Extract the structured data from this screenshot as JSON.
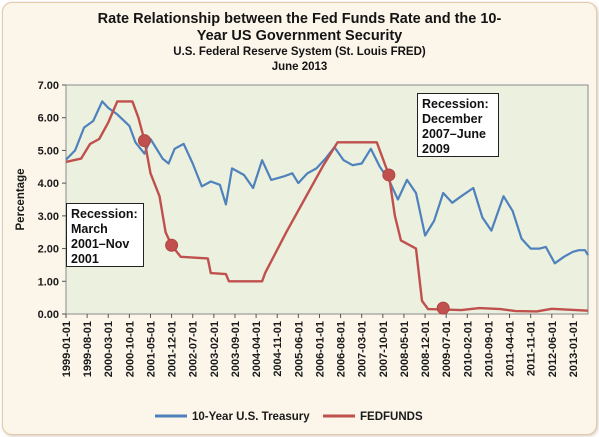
{
  "chart_data": {
    "type": "line",
    "title": "Rate Relationship between the Fed Funds Rate and the 10-Year US Government Security",
    "title_lines": [
      "Rate Relationship between the Fed Funds Rate and the 10-",
      "Year US Government Security"
    ],
    "subtitle": "U.S. Federal Reserve System (St. Louis FRED)",
    "date_line": "June 2013",
    "xlabel": "",
    "ylabel": "Percentage",
    "ylim": [
      0,
      7
    ],
    "yticks": [
      "0.00",
      "1.00",
      "2.00",
      "3.00",
      "4.00",
      "5.00",
      "6.00",
      "7.00"
    ],
    "xticks": [
      "1999-01-01",
      "1999-08-01",
      "2000-03-01",
      "2000-10-01",
      "2001-05-01",
      "2001-12-01",
      "2002-07-01",
      "2003-02-01",
      "2003-09-01",
      "2004-04-01",
      "2004-11-01",
      "2005-06-01",
      "2006-01-01",
      "2006-08-01",
      "2007-03-01",
      "2007-10-01",
      "2008-05-01",
      "2008-12-01",
      "2009-07-01",
      "2010-02-01",
      "2010-09-01",
      "2011-04-01",
      "2011-11-01",
      "2012-06-01",
      "2013-01-01"
    ],
    "xlim": [
      "1999-01-01",
      "2013-06-01"
    ],
    "grid": false,
    "legend_position": "bottom",
    "plot_background": "#ebf1de",
    "series": [
      {
        "name": "10-Year U.S. Treasury",
        "color": "#4f81bd",
        "points": [
          [
            "1999-01-01",
            4.72
          ],
          [
            "1999-04-01",
            5.0
          ],
          [
            "1999-07-01",
            5.7
          ],
          [
            "1999-10-01",
            5.9
          ],
          [
            "2000-01-01",
            6.5
          ],
          [
            "2000-03-01",
            6.3
          ],
          [
            "2000-06-01",
            6.1
          ],
          [
            "2000-10-01",
            5.75
          ],
          [
            "2000-12-01",
            5.25
          ],
          [
            "2001-03-01",
            4.9
          ],
          [
            "2001-05-01",
            5.35
          ],
          [
            "2001-09-01",
            4.75
          ],
          [
            "2001-11-01",
            4.6
          ],
          [
            "2002-01-01",
            5.05
          ],
          [
            "2002-04-01",
            5.2
          ],
          [
            "2002-07-01",
            4.6
          ],
          [
            "2002-10-01",
            3.9
          ],
          [
            "2003-01-01",
            4.05
          ],
          [
            "2003-04-01",
            3.95
          ],
          [
            "2003-06-01",
            3.35
          ],
          [
            "2003-08-01",
            4.45
          ],
          [
            "2003-12-01",
            4.25
          ],
          [
            "2004-03-01",
            3.85
          ],
          [
            "2004-06-01",
            4.7
          ],
          [
            "2004-09-01",
            4.1
          ],
          [
            "2005-01-01",
            4.2
          ],
          [
            "2005-04-01",
            4.3
          ],
          [
            "2005-06-01",
            4.0
          ],
          [
            "2005-09-01",
            4.3
          ],
          [
            "2005-12-01",
            4.45
          ],
          [
            "2006-03-01",
            4.75
          ],
          [
            "2006-06-01",
            5.1
          ],
          [
            "2006-09-01",
            4.7
          ],
          [
            "2006-12-01",
            4.55
          ],
          [
            "2007-03-01",
            4.6
          ],
          [
            "2007-06-01",
            5.05
          ],
          [
            "2007-09-01",
            4.5
          ],
          [
            "2007-12-01",
            4.1
          ],
          [
            "2008-03-01",
            3.5
          ],
          [
            "2008-06-01",
            4.1
          ],
          [
            "2008-09-01",
            3.7
          ],
          [
            "2008-12-01",
            2.4
          ],
          [
            "2009-03-01",
            2.85
          ],
          [
            "2009-06-01",
            3.7
          ],
          [
            "2009-09-01",
            3.4
          ],
          [
            "2009-12-01",
            3.6
          ],
          [
            "2010-04-01",
            3.85
          ],
          [
            "2010-07-01",
            2.95
          ],
          [
            "2010-10-01",
            2.55
          ],
          [
            "2011-02-01",
            3.6
          ],
          [
            "2011-05-01",
            3.15
          ],
          [
            "2011-08-01",
            2.3
          ],
          [
            "2011-11-01",
            2.0
          ],
          [
            "2012-02-01",
            2.0
          ],
          [
            "2012-04-01",
            2.05
          ],
          [
            "2012-07-01",
            1.55
          ],
          [
            "2012-10-01",
            1.75
          ],
          [
            "2013-01-01",
            1.9
          ],
          [
            "2013-03-01",
            1.95
          ],
          [
            "2013-05-01",
            1.95
          ],
          [
            "2013-06-01",
            1.8
          ]
        ]
      },
      {
        "name": "FEDFUNDS",
        "color": "#c0504d",
        "points": [
          [
            "1999-01-01",
            4.65
          ],
          [
            "1999-06-01",
            4.75
          ],
          [
            "1999-09-01",
            5.2
          ],
          [
            "1999-12-01",
            5.35
          ],
          [
            "2000-03-01",
            5.85
          ],
          [
            "2000-06-01",
            6.5
          ],
          [
            "2000-11-01",
            6.5
          ],
          [
            "2001-01-01",
            6.0
          ],
          [
            "2001-03-01",
            5.3
          ],
          [
            "2001-05-01",
            4.3
          ],
          [
            "2001-08-01",
            3.6
          ],
          [
            "2001-10-01",
            2.5
          ],
          [
            "2001-12-01",
            2.1
          ],
          [
            "2002-03-01",
            1.75
          ],
          [
            "2002-12-01",
            1.7
          ],
          [
            "2003-01-01",
            1.25
          ],
          [
            "2003-06-01",
            1.22
          ],
          [
            "2003-07-01",
            1.0
          ],
          [
            "2004-06-01",
            1.0
          ],
          [
            "2004-07-01",
            1.25
          ],
          [
            "2005-02-01",
            2.5
          ],
          [
            "2005-08-01",
            3.5
          ],
          [
            "2006-02-01",
            4.5
          ],
          [
            "2006-07-01",
            5.25
          ],
          [
            "2007-08-01",
            5.25
          ],
          [
            "2007-10-01",
            4.75
          ],
          [
            "2007-12-01",
            4.25
          ],
          [
            "2008-02-01",
            3.0
          ],
          [
            "2008-04-01",
            2.25
          ],
          [
            "2008-09-01",
            2.0
          ],
          [
            "2008-11-01",
            0.4
          ],
          [
            "2009-01-01",
            0.15
          ],
          [
            "2009-12-01",
            0.12
          ],
          [
            "2010-06-01",
            0.18
          ],
          [
            "2011-01-01",
            0.15
          ],
          [
            "2011-06-01",
            0.09
          ],
          [
            "2012-01-01",
            0.08
          ],
          [
            "2012-06-01",
            0.16
          ],
          [
            "2013-06-01",
            0.1
          ]
        ]
      }
    ],
    "markers": [
      [
        "2001-03-01",
        5.3
      ],
      [
        "2001-12-01",
        2.1
      ],
      [
        "2007-12-01",
        4.25
      ],
      [
        "2009-06-01",
        0.18
      ]
    ],
    "annotations": [
      {
        "id": "recession_2001",
        "text": "Recession:\nMarch\n2001–Nov\n2001"
      },
      {
        "id": "recession_2007",
        "text": "Recession:\nDecember\n2007–June\n2009"
      }
    ]
  }
}
